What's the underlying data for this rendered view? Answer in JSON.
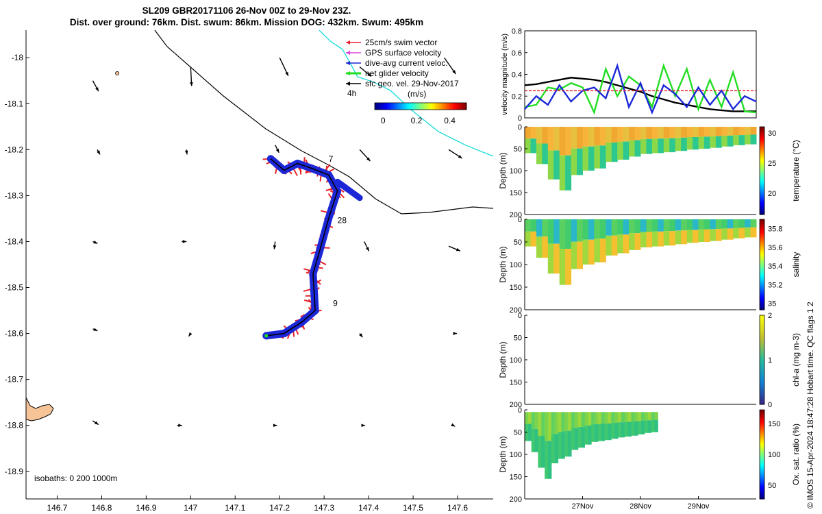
{
  "title_line1": "SL209 GBR20171106 26-Nov 00Z to 29-Nov 23Z.",
  "title_line2": "Dist. over ground: 76km. Dist. swum: 86km. Mission DOG: 432km. Swum: 495km",
  "credit": "© IMOS 15-Apr-2024 18:47:28 Hobart time. QC flags 1  2",
  "map": {
    "x_ticks": [
      "146.7",
      "146.8",
      "146.9",
      "147",
      "147.1",
      "147.2",
      "147.3",
      "147.4",
      "147.5",
      "147.6"
    ],
    "x_values": [
      146.7,
      146.8,
      146.9,
      147.0,
      147.1,
      147.2,
      147.3,
      147.4,
      147.5,
      147.6
    ],
    "y_ticks": [
      "-18",
      "-18.1",
      "-18.2",
      "-18.3",
      "-18.4",
      "-18.5",
      "-18.6",
      "-18.7",
      "-18.8",
      "-18.9"
    ],
    "y_values": [
      -18.0,
      -18.1,
      -18.2,
      -18.3,
      -18.4,
      -18.5,
      -18.6,
      -18.7,
      -18.8,
      -18.9
    ],
    "xlim": [
      146.63,
      147.68
    ],
    "ylim": [
      -18.96,
      -17.94
    ],
    "isobaths_label": "isobaths: 0   200   1000m",
    "track_labels": [
      {
        "text": "7",
        "lon": 147.31,
        "lat": -18.226
      },
      {
        "text": "28",
        "lon": 147.33,
        "lat": -18.36
      },
      {
        "text": "9",
        "lon": 147.32,
        "lat": -18.54
      }
    ],
    "track": [
      [
        147.18,
        -18.22
      ],
      [
        147.21,
        -18.245
      ],
      [
        147.24,
        -18.23
      ],
      [
        147.27,
        -18.24
      ],
      [
        147.31,
        -18.255
      ],
      [
        147.33,
        -18.29
      ],
      [
        147.31,
        -18.35
      ],
      [
        147.29,
        -18.42
      ],
      [
        147.275,
        -18.47
      ],
      [
        147.28,
        -18.55
      ],
      [
        147.25,
        -18.575
      ],
      [
        147.21,
        -18.6
      ],
      [
        147.17,
        -18.605
      ]
    ],
    "geo_vectors": [
      [
        146.78,
        -18.05,
        0.06,
        -0.11
      ],
      [
        146.9,
        -18.05,
        0.0,
        0.0
      ],
      [
        147.0,
        -18.02,
        0.01,
        -0.2
      ],
      [
        147.2,
        -18.0,
        0.09,
        -0.19
      ],
      [
        147.38,
        -18.02,
        0.12,
        -0.1
      ],
      [
        147.57,
        -18.0,
        0.12,
        -0.17
      ],
      [
        146.79,
        -18.2,
        0.03,
        -0.05
      ],
      [
        146.99,
        -18.2,
        0.01,
        -0.05
      ],
      [
        147.19,
        -18.19,
        0.04,
        -0.08
      ],
      [
        147.38,
        -18.2,
        0.11,
        -0.12
      ],
      [
        147.58,
        -18.2,
        0.14,
        -0.09
      ],
      [
        146.78,
        -18.4,
        0.05,
        -0.02
      ],
      [
        146.98,
        -18.4,
        0.05,
        0.0
      ],
      [
        147.19,
        -18.4,
        -0.01,
        -0.08
      ],
      [
        147.39,
        -18.4,
        0.05,
        -0.1
      ],
      [
        147.58,
        -18.41,
        0.12,
        -0.05
      ],
      [
        146.78,
        -18.59,
        0.05,
        -0.02
      ],
      [
        147.0,
        -18.6,
        -0.02,
        -0.03
      ],
      [
        147.38,
        -18.6,
        0.03,
        -0.04
      ],
      [
        147.59,
        -18.6,
        0.04,
        0.0
      ],
      [
        146.78,
        -18.79,
        0.06,
        -0.04
      ],
      [
        146.97,
        -18.8,
        0.05,
        0.0
      ],
      [
        147.19,
        -18.8,
        0.02,
        0.0
      ],
      [
        147.39,
        -18.8,
        0.01,
        0.0
      ],
      [
        147.59,
        -18.8,
        0.02,
        -0.01
      ]
    ],
    "legend": [
      {
        "label": "25cm/s swim vector",
        "color": "#e8232a"
      },
      {
        "label": "GPS surface velocity",
        "color": "#e040e0"
      },
      {
        "label": "dive-avg current veloc.",
        "color": "#1c28d8"
      },
      {
        "label": "net glider velocity",
        "color": "#22dd22"
      },
      {
        "label": "sfc geo. vel. 29-Nov-2017",
        "color": "#000000"
      }
    ],
    "legend_extra": "4h",
    "colorbar_title": "(m/s)",
    "colorbar_ticks": [
      "0",
      "0.2",
      "0.4"
    ],
    "colorbar_values": [
      0,
      0.2,
      0.4
    ],
    "colorbar_range": [
      -0.05,
      0.5
    ],
    "colors": {
      "land": "#f7c497",
      "track": "#000000",
      "swim": "#e8232a",
      "current": "#1c28d8",
      "coast_cyan": "#22dddd"
    }
  },
  "velocity_panel": {
    "ylabel": "velocity magnitude (m/s)",
    "y_ticks": [
      "0",
      "0.2",
      "0.4",
      "0.6",
      "0.8"
    ],
    "y_values": [
      0,
      0.2,
      0.4,
      0.6,
      0.8
    ],
    "ylim": [
      0,
      0.8
    ],
    "xlim": [
      0,
      4
    ],
    "series": [
      {
        "color": "#000000",
        "values": [
          0.3,
          0.31,
          0.33,
          0.35,
          0.37,
          0.36,
          0.35,
          0.33,
          0.3,
          0.27,
          0.24,
          0.2,
          0.17,
          0.14,
          0.12,
          0.1,
          0.08,
          0.07,
          0.06,
          0.06,
          0.06
        ]
      },
      {
        "color": "#22dd22",
        "values": [
          0.1,
          0.12,
          0.28,
          0.26,
          0.32,
          0.28,
          0.05,
          0.45,
          0.2,
          0.38,
          0.3,
          0.1,
          0.48,
          0.2,
          0.45,
          0.08,
          0.35,
          0.1,
          0.42,
          0.06,
          0.05
        ]
      },
      {
        "color": "#1c28d8",
        "values": [
          0.08,
          0.2,
          0.12,
          0.3,
          0.15,
          0.25,
          0.28,
          0.18,
          0.48,
          0.1,
          0.32,
          0.05,
          0.3,
          0.22,
          0.1,
          0.28,
          0.12,
          0.25,
          0.08,
          0.2,
          0.15
        ]
      },
      {
        "color": "#e8232a",
        "values": [
          0.25,
          0.25,
          0.25,
          0.25,
          0.25,
          0.25,
          0.25,
          0.25,
          0.25,
          0.25,
          0.25,
          0.25,
          0.25,
          0.25,
          0.25,
          0.25,
          0.25,
          0.25,
          0.25,
          0.25,
          0.25
        ]
      }
    ]
  },
  "profiles": [
    {
      "ylabel": "Depth (m)",
      "cbar_label": "temperature (°C)",
      "cbar_ticks": [
        "20",
        "25",
        "30"
      ],
      "cbar_values": [
        20,
        25,
        30
      ],
      "cbar_range": [
        16.5,
        31
      ],
      "fill": [
        "#f0a830",
        "#f7b43a",
        "#e8c040"
      ],
      "deep": [
        "#8cd848",
        "#2cc890"
      ]
    },
    {
      "ylabel": "Depth (m)",
      "cbar_label": "salinity",
      "cbar_ticks": [
        "35",
        "35.2",
        "35.4",
        "35.6",
        "35.8"
      ],
      "cbar_values": [
        35.0,
        35.2,
        35.4,
        35.6,
        35.8
      ],
      "cbar_range": [
        34.93,
        35.9
      ],
      "fill": [
        "#5ad060",
        "#42cc6c",
        "#2ab8c8"
      ],
      "deep": [
        "#a0d840",
        "#f5c030"
      ]
    },
    {
      "ylabel": "Depth (m)",
      "cbar_label": "chl-a (mg m-3)",
      "cbar_ticks": [
        "0",
        "1",
        "2"
      ],
      "cbar_values": [
        0,
        1,
        2
      ],
      "cbar_range": [
        0,
        2
      ],
      "fill": [],
      "deep": []
    },
    {
      "ylabel": "Depth (m)",
      "cbar_label": "Ox. sat. ratio (%)",
      "cbar_ticks": [
        "50",
        "100",
        "150"
      ],
      "cbar_values": [
        50,
        100,
        150
      ],
      "cbar_range": [
        28,
        172
      ],
      "fill": [
        "#7cd44c",
        "#9ad83e",
        "#60d060"
      ],
      "deep": [
        "#40c870",
        "#30c080"
      ]
    }
  ],
  "depth_ticks": [
    "0",
    "50",
    "100",
    "150",
    "200"
  ],
  "depth_values": [
    0,
    50,
    100,
    150,
    200
  ],
  "time_ticks": [
    "27Nov",
    "28Nov",
    "29Nov"
  ],
  "time_values": [
    1,
    2,
    3
  ],
  "time_range": [
    0,
    4
  ]
}
